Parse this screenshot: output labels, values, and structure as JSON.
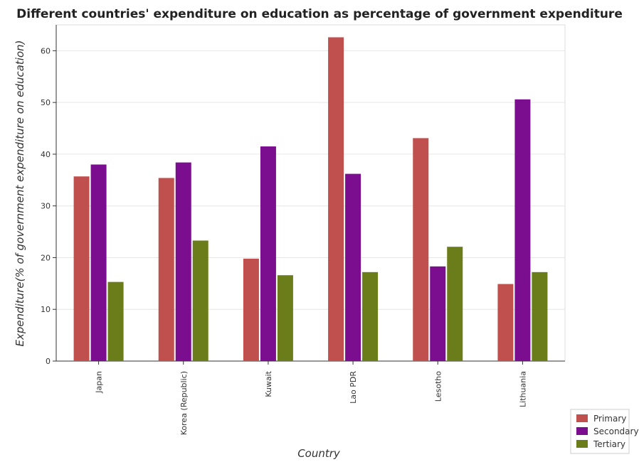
{
  "chart_data": {
    "type": "bar",
    "title": "Different countries' expenditure on education as percentage of government expenditure",
    "xlabel": "Country",
    "ylabel": "Expenditure(% of government expenditure on education)",
    "categories": [
      "Japan",
      "Korea (Republic)",
      "Kuwait",
      "Lao PDR",
      "Lesotho",
      "Lithuania"
    ],
    "ylim": [
      0,
      65
    ],
    "yticks": [
      0,
      10,
      20,
      30,
      40,
      50,
      60
    ],
    "grid": true,
    "legend_position": "bottom-right",
    "series": [
      {
        "name": "Primary",
        "color": "#c0504d",
        "values": [
          35.7,
          35.4,
          19.8,
          62.6,
          43.1,
          14.9
        ]
      },
      {
        "name": "Secondary",
        "color": "#7b0e8f",
        "values": [
          38.0,
          38.4,
          41.5,
          36.2,
          18.3,
          50.6
        ]
      },
      {
        "name": "Tertiary",
        "color": "#6b7d1a",
        "values": [
          15.3,
          23.3,
          16.6,
          17.2,
          22.1,
          17.2
        ]
      }
    ]
  }
}
